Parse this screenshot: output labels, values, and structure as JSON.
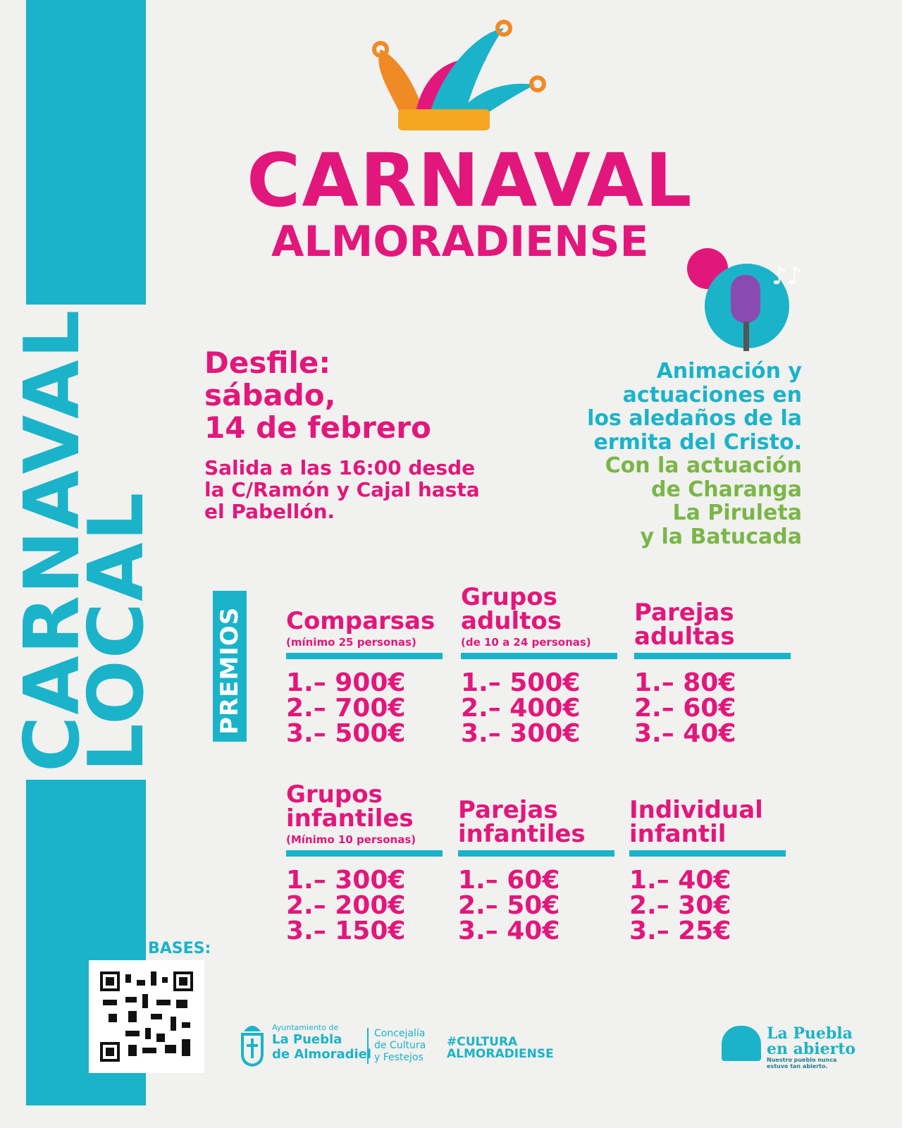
{
  "title": {
    "line1": "CARNAVAL",
    "line2": "ALMORADIENSE"
  },
  "side_title": {
    "line1": "CARNAVAL",
    "line2": "LOCAL"
  },
  "desfile": {
    "heading": "Desfile:",
    "date1": "sábado,",
    "date2": "14 de febrero",
    "details": [
      "Salida a las 16:00 desde",
      "la C/Ramón y Cajal hasta",
      "el Pabellón."
    ]
  },
  "animacion": {
    "cyan_lines": [
      "Animación y",
      "actuaciones en",
      "los aledaños de la",
      "ermita del Cristo."
    ],
    "green_lines": [
      "Con la actuación",
      "de Charanga",
      "La Piruleta",
      "y la Batucada"
    ]
  },
  "premios_label": "PREMIOS",
  "categories": [
    {
      "name": [
        "Comparsas"
      ],
      "note": "(mínimo 25 personas)",
      "prizes": [
        "1.– 900€",
        "2.– 700€",
        "3.– 500€"
      ]
    },
    {
      "name": [
        "Grupos",
        "adultos"
      ],
      "note": "(de 10 a 24 personas)",
      "prizes": [
        "1.– 500€",
        "2.– 400€",
        "3.– 300€"
      ]
    },
    {
      "name": [
        "Parejas",
        "adultas"
      ],
      "note": "",
      "prizes": [
        "1.– 80€",
        "2.– 60€",
        "3.– 40€"
      ]
    },
    {
      "name": [
        "Grupos",
        "infantiles"
      ],
      "note": "(Mínimo 10 personas)",
      "prizes": [
        "1.– 300€",
        "2.– 200€",
        "3.– 150€"
      ]
    },
    {
      "name": [
        "Parejas",
        "infantiles"
      ],
      "note": "",
      "prizes": [
        "1.– 60€",
        "2.– 50€",
        "3.– 40€"
      ]
    },
    {
      "name": [
        "Individual",
        "infantil"
      ],
      "note": "",
      "prizes": [
        "1.– 40€",
        "2.– 30€",
        "3.– 25€"
      ]
    }
  ],
  "bases_label": "BASES:",
  "footer": {
    "ayto_small": "Ayuntamiento de",
    "ayto_l1": "La Puebla",
    "ayto_l2": "de Almoradiel",
    "conc": [
      "Concejalía",
      "de Cultura",
      "y Festejos"
    ],
    "hashtag": [
      "#CULTURA",
      "ALMORADIENSE"
    ],
    "brand": [
      "La Puebla",
      "en abierto"
    ],
    "tagline": [
      "Nuestro pueblo nunca",
      "estuvo tan abierto."
    ]
  },
  "colors": {
    "pink": "#e2177b",
    "cyan": "#1bb3c9",
    "green": "#7ab648",
    "background": "#f1f1ef"
  }
}
